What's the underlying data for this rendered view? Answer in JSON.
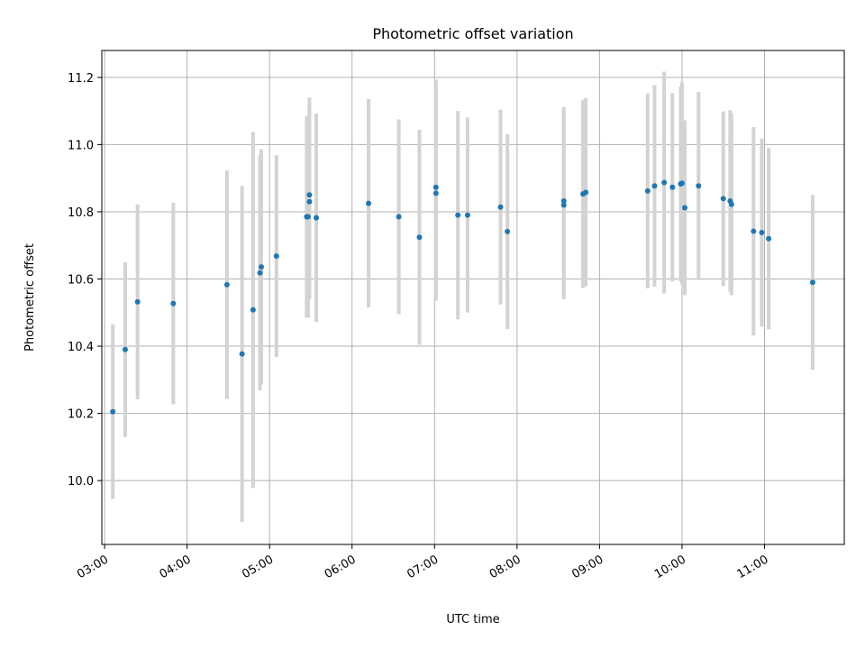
{
  "chart_data": {
    "type": "scatter",
    "title": "Photometric offset variation",
    "xlabel": "UTC time",
    "ylabel": "Photometric offset",
    "xlim": [
      "02:58",
      "11:58"
    ],
    "ylim": [
      9.81,
      11.28
    ],
    "x_ticks": [
      "03:00",
      "04:00",
      "05:00",
      "06:00",
      "07:00",
      "08:00",
      "09:00",
      "10:00",
      "11:00"
    ],
    "y_ticks": [
      10.0,
      10.2,
      10.4,
      10.6,
      10.8,
      11.0,
      11.2
    ],
    "grid": true,
    "marker_color": "#1f77b4",
    "errorbar_color": "#d3d3d3",
    "series": [
      {
        "x": [
          "03:06",
          "03:15",
          "03:24",
          "03:50",
          "04:29",
          "04:40",
          "04:48",
          "04:53",
          "04:54",
          "05:05",
          "05:27",
          "05:28",
          "05:29",
          "05:29",
          "05:34",
          "06:12",
          "06:34",
          "06:49",
          "07:01",
          "07:01",
          "07:17",
          "07:24",
          "07:48",
          "07:53",
          "08:34",
          "08:34",
          "08:48",
          "08:50",
          "09:35",
          "09:40",
          "09:47",
          "09:53",
          "09:59",
          "10:00",
          "10:02",
          "10:12",
          "10:30",
          "10:35",
          "10:36",
          "10:52",
          "10:58",
          "11:03",
          "11:35"
        ],
        "y": [
          10.205,
          10.39,
          10.532,
          10.527,
          10.583,
          10.377,
          10.508,
          10.618,
          10.636,
          10.668,
          10.785,
          10.785,
          10.85,
          10.83,
          10.782,
          10.825,
          10.785,
          10.724,
          10.855,
          10.873,
          10.79,
          10.79,
          10.814,
          10.741,
          10.82,
          10.832,
          10.853,
          10.858,
          10.862,
          10.877,
          10.887,
          10.873,
          10.883,
          10.885,
          10.812,
          10.877,
          10.839,
          10.832,
          10.822,
          10.742,
          10.738,
          10.72,
          10.59
        ],
        "yerr": [
          0.26,
          0.26,
          0.29,
          0.3,
          0.34,
          0.5,
          0.53,
          0.35,
          0.35,
          0.3,
          0.3,
          0.3,
          0.29,
          0.29,
          0.31,
          0.31,
          0.29,
          0.32,
          0.32,
          0.32,
          0.31,
          0.29,
          0.29,
          0.29,
          0.28,
          0.28,
          0.28,
          0.28,
          0.29,
          0.3,
          0.33,
          0.28,
          0.29,
          0.3,
          0.26,
          0.28,
          0.26,
          0.27,
          0.27,
          0.31,
          0.28,
          0.27,
          0.26
        ]
      }
    ]
  }
}
